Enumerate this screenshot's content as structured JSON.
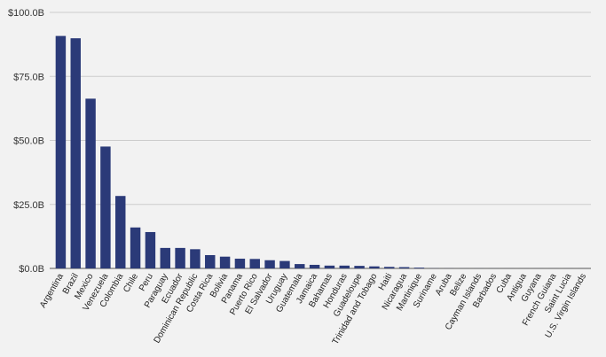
{
  "chart_data": {
    "type": "bar",
    "title": "",
    "xlabel": "",
    "ylabel": "",
    "ylim": [
      0,
      100
    ],
    "grid": true,
    "legend": "none",
    "bar_color": "#2b3a78",
    "grid_color": "#cccccc",
    "background": "#f2f2f2",
    "y_ticks": [
      {
        "value": 0,
        "label": "$0.0B"
      },
      {
        "value": 25,
        "label": "$25.0B"
      },
      {
        "value": 50,
        "label": "$50.0B"
      },
      {
        "value": 75,
        "label": "$75.0B"
      },
      {
        "value": 100,
        "label": "$100.0B"
      }
    ],
    "categories": [
      "Argentina",
      "Brazil",
      "Mexico",
      "Venezuela",
      "Colombia",
      "Chile",
      "Peru",
      "Paraguay",
      "Ecuador",
      "Dominican Republic",
      "Costa Rica",
      "Bolivia",
      "Panama",
      "Puerto Rico",
      "El Salvador",
      "Uruguay",
      "Guatemala",
      "Jamaica",
      "Bahamas",
      "Honduras",
      "Guadeloupe",
      "Trinidad and Tobago",
      "Haiti",
      "Nicaragua",
      "Martinique",
      "Suriname",
      "Aruba",
      "Belize",
      "Cayman Islands",
      "Barbados",
      "Cuba",
      "Antigua",
      "Guyana",
      "French Guiana",
      "Saint Lucia",
      "U.S. Virgin Islands"
    ],
    "values": [
      90.8,
      89.9,
      66.3,
      47.6,
      28.3,
      16.0,
      14.2,
      8.0,
      8.0,
      7.5,
      5.2,
      4.6,
      3.8,
      3.7,
      3.2,
      2.9,
      1.7,
      1.4,
      1.1,
      1.1,
      1.0,
      0.8,
      0.6,
      0.5,
      0.3,
      0.05,
      0.03,
      0.02,
      0.02,
      0.02,
      0.01,
      0.01,
      0.01,
      0.01,
      0.01,
      0.01
    ]
  }
}
